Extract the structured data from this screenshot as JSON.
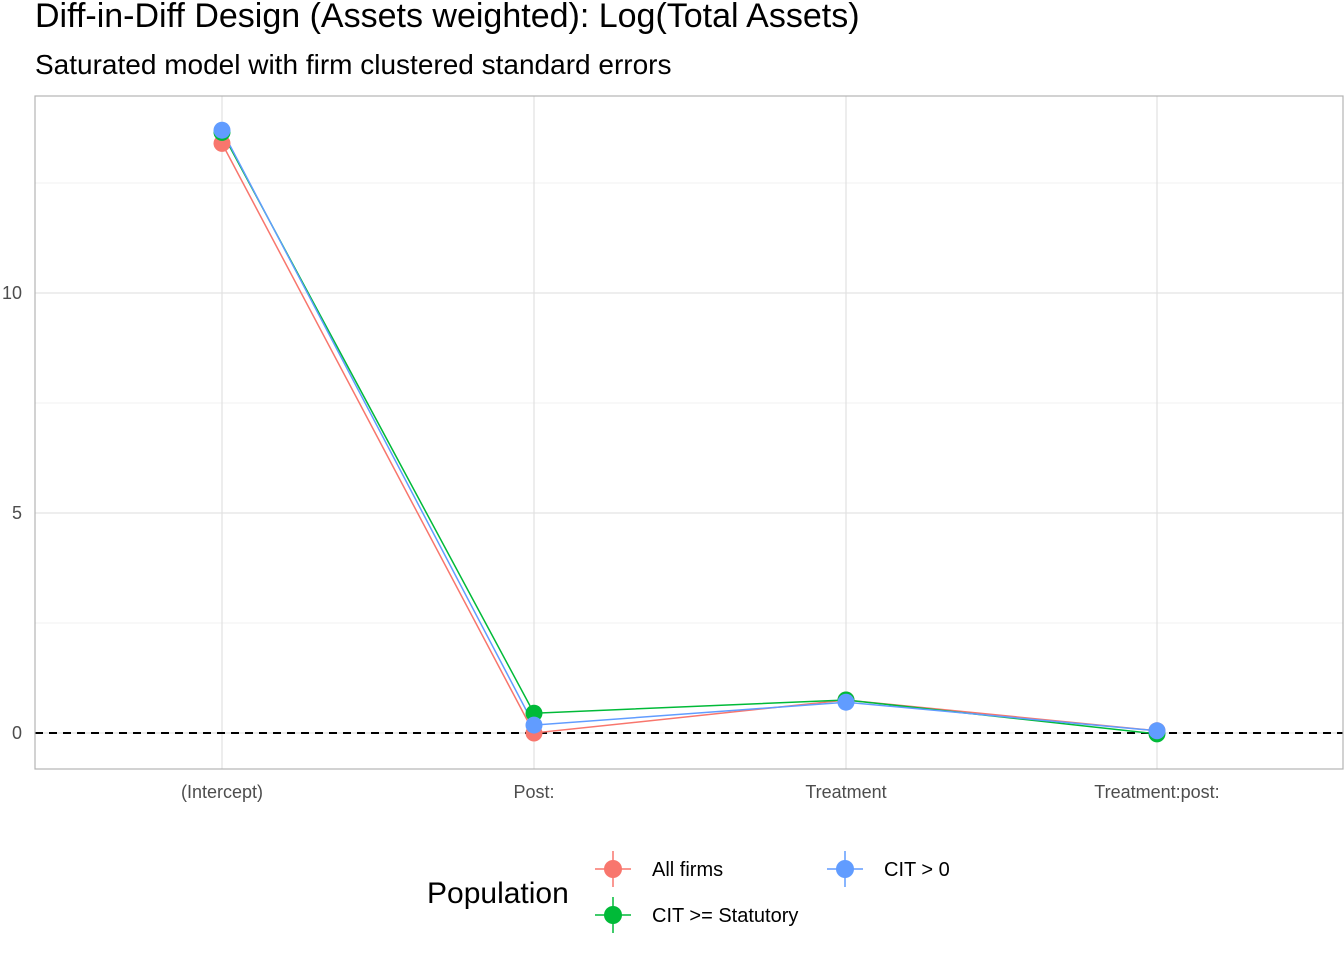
{
  "chart_data": {
    "type": "line",
    "title": "Diff-in-Diff Design (Assets weighted): Log(Total Assets)",
    "subtitle": "Saturated model with firm clustered standard errors",
    "xlabel": "",
    "ylabel": "",
    "categories": [
      "(Intercept)",
      "Post:",
      "Treatment",
      "Treatment:post:"
    ],
    "ylim": [
      -0.8,
      14.5
    ],
    "y_ticks": [
      0,
      5,
      10
    ],
    "y_tick_labels": [
      "0",
      "5",
      "10"
    ],
    "reference_line": 0,
    "grid": true,
    "legend_title": "Population",
    "legend_position": "bottom",
    "series": [
      {
        "name": "All firms",
        "color": "#F8766D",
        "values": [
          13.4,
          0.0,
          0.75,
          0.05
        ]
      },
      {
        "name": "CIT >= Statutory",
        "color": "#00BA38",
        "values": [
          13.65,
          0.45,
          0.75,
          -0.02
        ]
      },
      {
        "name": "CIT > 0",
        "color": "#619CFF",
        "values": [
          13.7,
          0.18,
          0.7,
          0.05
        ]
      }
    ]
  }
}
